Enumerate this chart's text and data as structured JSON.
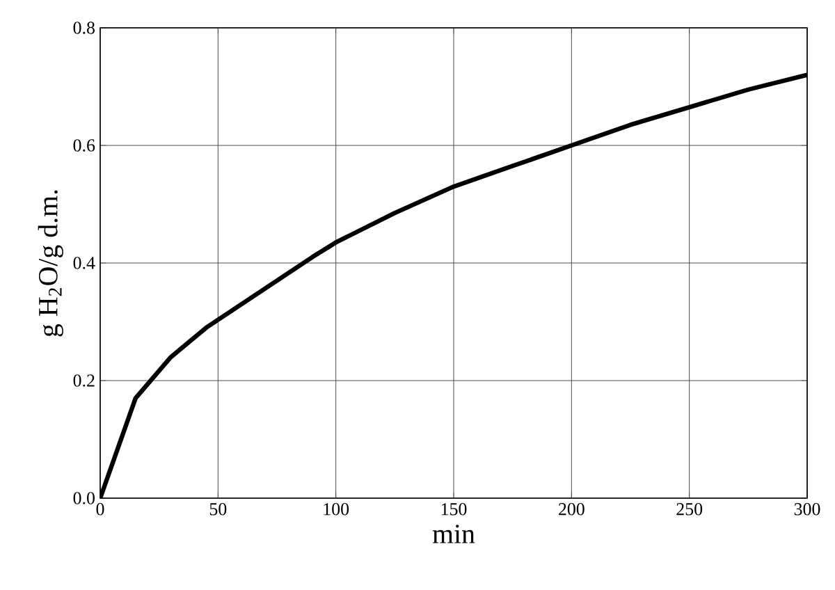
{
  "chart_data": {
    "type": "line",
    "xlabel": "min",
    "ylabel": "g H$_{2}$O/g d.m.",
    "x": [
      0,
      15,
      30,
      45,
      60,
      75,
      90,
      100,
      125,
      150,
      175,
      200,
      225,
      250,
      275,
      300
    ],
    "series": [
      {
        "color": "#000000",
        "values": [
          0,
          0.17,
          0.24,
          0.29,
          0.33,
          0.37,
          0.41,
          0.435,
          0.485,
          0.53,
          0.565,
          0.6,
          0.635,
          0.665,
          0.695,
          0.72
        ]
      }
    ],
    "xlim": [
      0,
      300
    ],
    "xticks": [
      0,
      50,
      100,
      150,
      200,
      250,
      300
    ],
    "ylim": [
      0,
      0.8
    ],
    "yticks": [
      {
        "value": 0,
        "label": "0.0"
      },
      0.2,
      0.4,
      0.6,
      0.8
    ],
    "grid": true,
    "line_style": "solid"
  }
}
